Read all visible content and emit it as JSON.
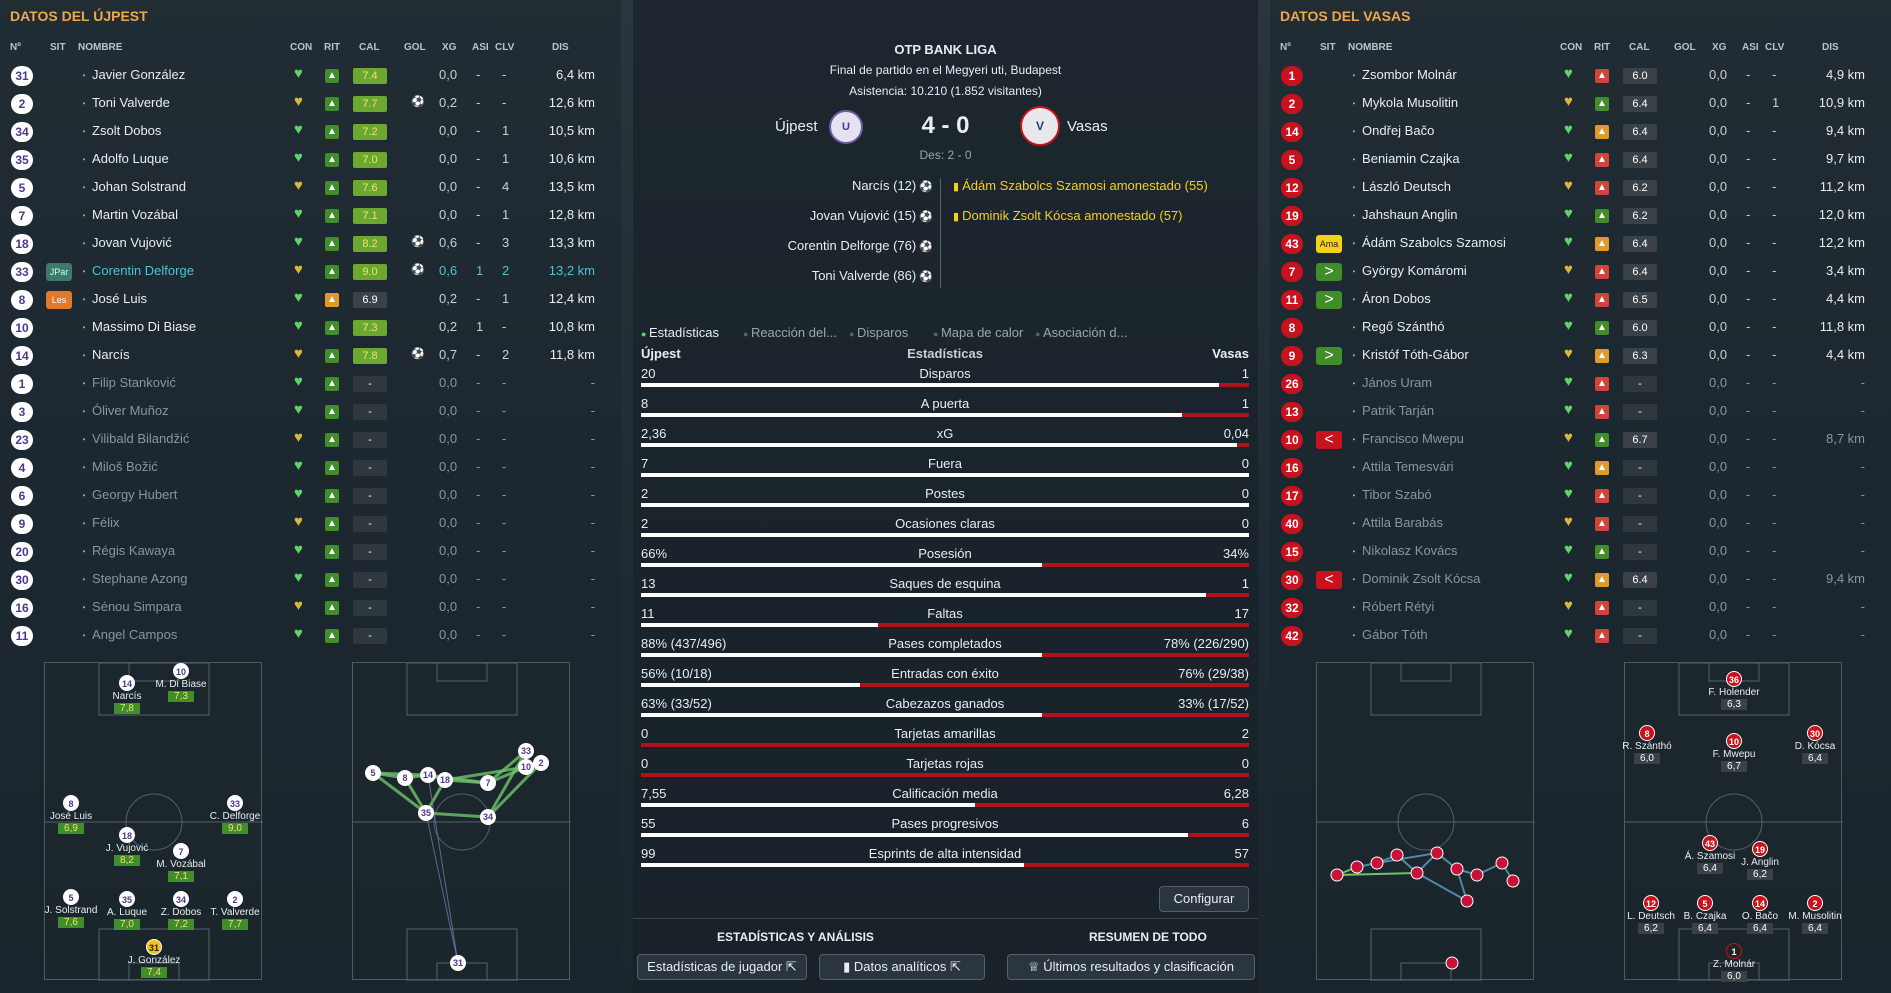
{
  "home": {
    "title": "DATOS DEL ÚJPEST",
    "headers": {
      "no": "Nº",
      "sit": "SIT",
      "name": "NOMBRE",
      "con": "CON",
      "rit": "RIT",
      "cal": "CAL",
      "gol": "GOL",
      "xg": "XG",
      "asi": "ASI",
      "clv": "CLV",
      "dis": "DIS"
    },
    "players": [
      {
        "n": "31",
        "sit": "",
        "name": "Javier González",
        "cal": "7.4",
        "gol": "",
        "xg": "0,0",
        "asi": "-",
        "clv": "-",
        "dis": "6,4 km",
        "active": true
      },
      {
        "n": "2",
        "sit": "",
        "name": "Toni Valverde",
        "cal": "7.7",
        "gol": "⚽",
        "xg": "0,2",
        "asi": "-",
        "clv": "-",
        "dis": "12,6 km",
        "active": true
      },
      {
        "n": "34",
        "sit": "",
        "name": "Zsolt Dobos",
        "cal": "7.2",
        "gol": "",
        "xg": "0,0",
        "asi": "-",
        "clv": "1",
        "dis": "10,5 km",
        "active": true
      },
      {
        "n": "35",
        "sit": "",
        "name": "Adolfo Luque",
        "cal": "7.0",
        "gol": "",
        "xg": "0,0",
        "asi": "-",
        "clv": "1",
        "dis": "10,6 km",
        "active": true
      },
      {
        "n": "5",
        "sit": "",
        "name": "Johan Solstrand",
        "cal": "7.6",
        "gol": "",
        "xg": "0,0",
        "asi": "-",
        "clv": "4",
        "dis": "13,5 km",
        "active": true
      },
      {
        "n": "7",
        "sit": "",
        "name": "Martin Vozábal",
        "cal": "7.1",
        "gol": "",
        "xg": "0,0",
        "asi": "-",
        "clv": "1",
        "dis": "12,8 km",
        "active": true
      },
      {
        "n": "18",
        "sit": "",
        "name": "Jovan Vujović",
        "cal": "8.2",
        "gol": "⚽",
        "xg": "0,6",
        "asi": "-",
        "clv": "3",
        "dis": "13,3 km",
        "active": true
      },
      {
        "n": "33",
        "sit": "JPar",
        "name": "Corentin Delforge",
        "cal": "9.0",
        "gol": "⚽",
        "xg": "0,6",
        "asi": "1",
        "clv": "2",
        "dis": "13,2 km",
        "active": true,
        "hl": true
      },
      {
        "n": "8",
        "sit": "Les",
        "name": "José Luis",
        "cal": "6.9",
        "gol": "",
        "xg": "0,2",
        "asi": "-",
        "clv": "1",
        "dis": "12,4 km",
        "active": true
      },
      {
        "n": "10",
        "sit": "",
        "name": "Massimo Di Biase",
        "cal": "7.3",
        "gol": "",
        "xg": "0,2",
        "asi": "1",
        "clv": "-",
        "dis": "10,8 km",
        "active": true
      },
      {
        "n": "14",
        "sit": "",
        "name": "Narcís",
        "cal": "7.8",
        "gol": "⚽",
        "xg": "0,7",
        "asi": "-",
        "clv": "2",
        "dis": "11,8 km",
        "active": true
      },
      {
        "n": "1",
        "sit": "",
        "name": "Filip Stanković",
        "cal": "-",
        "gol": "",
        "xg": "0,0",
        "asi": "-",
        "clv": "-",
        "dis": "-",
        "active": false
      },
      {
        "n": "3",
        "sit": "",
        "name": "Óliver Muñoz",
        "cal": "-",
        "gol": "",
        "xg": "0,0",
        "asi": "-",
        "clv": "-",
        "dis": "-",
        "active": false
      },
      {
        "n": "23",
        "sit": "",
        "name": "Vilibald Bilandžić",
        "cal": "-",
        "gol": "",
        "xg": "0,0",
        "asi": "-",
        "clv": "-",
        "dis": "-",
        "active": false
      },
      {
        "n": "4",
        "sit": "",
        "name": "Miloš Božić",
        "cal": "-",
        "gol": "",
        "xg": "0,0",
        "asi": "-",
        "clv": "-",
        "dis": "-",
        "active": false
      },
      {
        "n": "6",
        "sit": "",
        "name": "Georgy Hubert",
        "cal": "-",
        "gol": "",
        "xg": "0,0",
        "asi": "-",
        "clv": "-",
        "dis": "-",
        "active": false
      },
      {
        "n": "9",
        "sit": "",
        "name": "Félix",
        "cal": "-",
        "gol": "",
        "xg": "0,0",
        "asi": "-",
        "clv": "-",
        "dis": "-",
        "active": false
      },
      {
        "n": "20",
        "sit": "",
        "name": "Régis Kawaya",
        "cal": "-",
        "gol": "",
        "xg": "0,0",
        "asi": "-",
        "clv": "-",
        "dis": "-",
        "active": false
      },
      {
        "n": "30",
        "sit": "",
        "name": "Stephane Azong",
        "cal": "-",
        "gol": "",
        "xg": "0,0",
        "asi": "-",
        "clv": "-",
        "dis": "-",
        "active": false
      },
      {
        "n": "16",
        "sit": "",
        "name": "Sénou Simpara",
        "cal": "-",
        "gol": "",
        "xg": "0,0",
        "asi": "-",
        "clv": "-",
        "dis": "-",
        "active": false
      },
      {
        "n": "11",
        "sit": "",
        "name": "Angel Campos",
        "cal": "-",
        "gol": "",
        "xg": "0,0",
        "asi": "-",
        "clv": "-",
        "dis": "-",
        "active": false
      }
    ],
    "formation": [
      {
        "n": "14",
        "name": "Narcís",
        "r": "7,8"
      },
      {
        "n": "10",
        "name": "M. Di Biase",
        "r": "7,3"
      },
      {
        "n": "8",
        "name": "José Luis",
        "r": "6,9"
      },
      {
        "n": "33",
        "name": "C. Delforge",
        "r": "9,0"
      },
      {
        "n": "18",
        "name": "J. Vujović",
        "r": "8,2"
      },
      {
        "n": "7",
        "name": "M. Vozábal",
        "r": "7,1"
      },
      {
        "n": "5",
        "name": "J. Solstrand",
        "r": "7,6"
      },
      {
        "n": "35",
        "name": "A. Luque",
        "r": "7,0"
      },
      {
        "n": "34",
        "name": "Z. Dobos",
        "r": "7,2"
      },
      {
        "n": "2",
        "name": "T. Valverde",
        "r": "7,7"
      },
      {
        "n": "31",
        "name": "J. González",
        "r": "7,4"
      }
    ],
    "pass_nodes": [
      "5",
      "8",
      "14",
      "18",
      "35",
      "7",
      "34",
      "33",
      "10",
      "2",
      "31"
    ]
  },
  "away": {
    "title": "DATOS DEL VASAS",
    "headers": {
      "no": "Nº",
      "sit": "SIT",
      "name": "NOMBRE",
      "con": "CON",
      "rit": "RIT",
      "cal": "CAL",
      "gol": "GOL",
      "xg": "XG",
      "asi": "ASI",
      "clv": "CLV",
      "dis": "DIS"
    },
    "players": [
      {
        "n": "1",
        "sit": "",
        "name": "Zsombor Molnár",
        "cal": "6.0",
        "xg": "0,0",
        "asi": "-",
        "clv": "-",
        "dis": "4,9 km",
        "active": true
      },
      {
        "n": "2",
        "sit": "",
        "name": "Mykola Musolitin",
        "cal": "6.4",
        "xg": "0,0",
        "asi": "-",
        "clv": "1",
        "dis": "10,9 km",
        "active": true
      },
      {
        "n": "14",
        "sit": "",
        "name": "Ondřej Bačo",
        "cal": "6.4",
        "xg": "0,0",
        "asi": "-",
        "clv": "-",
        "dis": "9,4 km",
        "active": true
      },
      {
        "n": "5",
        "sit": "",
        "name": "Beniamin Czajka",
        "cal": "6.4",
        "xg": "0,0",
        "asi": "-",
        "clv": "-",
        "dis": "9,7 km",
        "active": true
      },
      {
        "n": "12",
        "sit": "",
        "name": "László Deutsch",
        "cal": "6.2",
        "xg": "0,0",
        "asi": "-",
        "clv": "-",
        "dis": "11,2 km",
        "active": true
      },
      {
        "n": "19",
        "sit": "",
        "name": "Jahshaun Anglin",
        "cal": "6.2",
        "xg": "0,0",
        "asi": "-",
        "clv": "-",
        "dis": "12,0 km",
        "active": true
      },
      {
        "n": "43",
        "sit": "Ama",
        "name": "Ádám Szabolcs Szamosi",
        "cal": "6.4",
        "xg": "0,0",
        "asi": "-",
        "clv": "-",
        "dis": "12,2 km",
        "active": true
      },
      {
        "n": "7",
        "sit": ">",
        "name": "György Komáromi",
        "cal": "6.4",
        "xg": "0,0",
        "asi": "-",
        "clv": "-",
        "dis": "3,4 km",
        "active": true
      },
      {
        "n": "11",
        "sit": ">",
        "name": "Áron Dobos",
        "cal": "6.5",
        "xg": "0,0",
        "asi": "-",
        "clv": "-",
        "dis": "4,4 km",
        "active": true
      },
      {
        "n": "8",
        "sit": "",
        "name": "Regő Szánthó",
        "cal": "6.0",
        "xg": "0,0",
        "asi": "-",
        "clv": "-",
        "dis": "11,8 km",
        "active": true
      },
      {
        "n": "9",
        "sit": ">",
        "name": "Kristóf Tóth-Gábor",
        "cal": "6.3",
        "xg": "0,0",
        "asi": "-",
        "clv": "-",
        "dis": "4,4 km",
        "active": true
      },
      {
        "n": "26",
        "sit": "",
        "name": "János Uram",
        "cal": "-",
        "xg": "0,0",
        "asi": "-",
        "clv": "-",
        "dis": "-",
        "active": false
      },
      {
        "n": "13",
        "sit": "",
        "name": "Patrik Tarján",
        "cal": "-",
        "xg": "0,0",
        "asi": "-",
        "clv": "-",
        "dis": "-",
        "active": false
      },
      {
        "n": "10",
        "sit": "<",
        "name": "Francisco Mwepu",
        "cal": "6.7",
        "xg": "0,0",
        "asi": "-",
        "clv": "-",
        "dis": "8,7 km",
        "active": false
      },
      {
        "n": "16",
        "sit": "",
        "name": "Attila Temesvári",
        "cal": "-",
        "xg": "0,0",
        "asi": "-",
        "clv": "-",
        "dis": "-",
        "active": false
      },
      {
        "n": "17",
        "sit": "",
        "name": "Tibor Szabó",
        "cal": "-",
        "xg": "0,0",
        "asi": "-",
        "clv": "-",
        "dis": "-",
        "active": false
      },
      {
        "n": "40",
        "sit": "",
        "name": "Attila Barabás",
        "cal": "-",
        "xg": "0,0",
        "asi": "-",
        "clv": "-",
        "dis": "-",
        "active": false
      },
      {
        "n": "15",
        "sit": "",
        "name": "Nikolasz Kovács",
        "cal": "-",
        "xg": "0,0",
        "asi": "-",
        "clv": "-",
        "dis": "-",
        "active": false
      },
      {
        "n": "30",
        "sit": "<",
        "name": "Dominik Zsolt Kócsa",
        "cal": "6.4",
        "xg": "0,0",
        "asi": "-",
        "clv": "-",
        "dis": "9,4 km",
        "active": false
      },
      {
        "n": "32",
        "sit": "",
        "name": "Róbert Rétyi",
        "cal": "-",
        "xg": "0,0",
        "asi": "-",
        "clv": "-",
        "dis": "-",
        "active": false
      },
      {
        "n": "42",
        "sit": "",
        "name": "Gábor Tóth",
        "cal": "-",
        "xg": "0,0",
        "asi": "-",
        "clv": "-",
        "dis": "-",
        "active": false
      }
    ],
    "formation": [
      {
        "n": "36",
        "name": "F. Holender",
        "r": "6,3"
      },
      {
        "n": "8",
        "name": "R. Szánthó",
        "r": "6,0"
      },
      {
        "n": "10",
        "name": "F. Mwepu",
        "r": "6,7"
      },
      {
        "n": "30",
        "name": "D. Kócsa",
        "r": "6,4"
      },
      {
        "n": "43",
        "name": "Á. Szamosi",
        "r": "6,4"
      },
      {
        "n": "19",
        "name": "J. Anglin",
        "r": "6,2"
      },
      {
        "n": "12",
        "name": "L. Deutsch",
        "r": "6,2"
      },
      {
        "n": "5",
        "name": "B. Czajka",
        "r": "6,4"
      },
      {
        "n": "14",
        "name": "O. Bačo",
        "r": "6,4"
      },
      {
        "n": "2",
        "name": "M. Musolitin",
        "r": "6,4"
      },
      {
        "n": "1",
        "name": "Z. Molnár",
        "r": "6,0"
      }
    ]
  },
  "match": {
    "league": "OTP BANK LIGA",
    "venue": "Final de partido en el Megyeri uti, Budapest",
    "attendance": "Asistencia: 10.210 (1.852 visitantes)",
    "home_team": "Újpest",
    "away_team": "Vasas",
    "score": "4 - 0",
    "halftime": "Des: 2 - 0",
    "home_events": [
      "Narcís (12)",
      "Jovan Vujović (15)",
      "Corentin Delforge (76)",
      "Toni Valverde (86)"
    ],
    "away_events": [
      "Ádám Szabolcs Szamosi amonestado (55)",
      "Dominik Zsolt Kócsa amonestado (57)"
    ]
  },
  "tabs": [
    "Estadísticas",
    "Reacción del...",
    "Disparos",
    "Mapa de calor",
    "Asociación d..."
  ],
  "stats_header": {
    "home": "Újpest",
    "mid": "Estadísticas",
    "away": "Vasas"
  },
  "stats": [
    {
      "label": "Disparos",
      "h": "20",
      "a": "1",
      "hf": 0.95
    },
    {
      "label": "A puerta",
      "h": "8",
      "a": "1",
      "hf": 0.89
    },
    {
      "label": "xG",
      "h": "2,36",
      "a": "0,04",
      "hf": 0.98
    },
    {
      "label": "Fuera",
      "h": "7",
      "a": "0",
      "hf": 1
    },
    {
      "label": "Postes",
      "h": "2",
      "a": "0",
      "hf": 1
    },
    {
      "label": "Ocasiones claras",
      "h": "2",
      "a": "0",
      "hf": 1
    },
    {
      "label": "Posesión",
      "h": "66%",
      "a": "34%",
      "hf": 0.66
    },
    {
      "label": "Saques de esquina",
      "h": "13",
      "a": "1",
      "hf": 0.93
    },
    {
      "label": "Faltas",
      "h": "11",
      "a": "17",
      "hf": 0.39
    },
    {
      "label": "Pases completados",
      "h": "88% (437/496)",
      "a": "78% (226/290)",
      "hf": 0.66
    },
    {
      "label": "Entradas con éxito",
      "h": "56% (10/18)",
      "a": "76% (29/38)",
      "hf": 0.36
    },
    {
      "label": "Cabezazos ganados",
      "h": "63% (33/52)",
      "a": "33% (17/52)",
      "hf": 0.66
    },
    {
      "label": "Tarjetas amarillas",
      "h": "0",
      "a": "2",
      "hf": 0
    },
    {
      "label": "Tarjetas rojas",
      "h": "0",
      "a": "0",
      "hf": 0
    },
    {
      "label": "Calificación media",
      "h": "7,55",
      "a": "6,28",
      "hf": 0.55
    },
    {
      "label": "Pases progresivos",
      "h": "55",
      "a": "6",
      "hf": 0.9
    },
    {
      "label": "Esprints de alta intensidad",
      "h": "99",
      "a": "57",
      "hf": 0.63
    }
  ],
  "buttons": {
    "configure": "Configurar",
    "sec1": "ESTADÍSTICAS Y ANÁLISIS",
    "sec2": "RESUMEN DE TODO",
    "player_stats": "Estadísticas de jugador",
    "analytics": "Datos analíticos",
    "results": "Últimos resultados y clasificación"
  },
  "colors": {
    "accent": "#f0a64a",
    "home": "#ffffff",
    "away": "#b0121c",
    "rating_green": "#3f8e2a"
  }
}
